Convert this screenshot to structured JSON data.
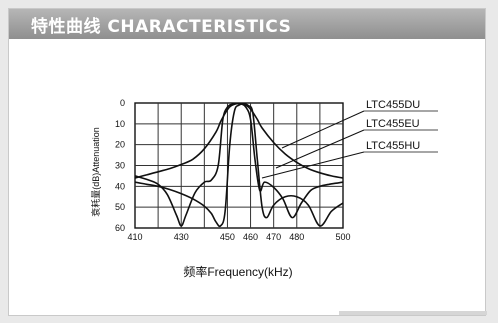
{
  "header": {
    "title": "特性曲线 CHARACTERISTICS"
  },
  "colors": {
    "header_bg": "#a3a3a3",
    "curve": "#111111",
    "grid": "#333333"
  },
  "chart_data": {
    "type": "line",
    "title": "",
    "xlabel": "频率Frequency(kHz)",
    "ylabel": "衰耗量(dB)Attenuation",
    "xlim": [
      410,
      500
    ],
    "ylim": [
      0,
      60
    ],
    "y_inverted": true,
    "grid": true,
    "xticks": [
      "410",
      "430",
      "450",
      "460",
      "470",
      "480",
      "500"
    ],
    "yticks": [
      "0",
      "10",
      "20",
      "30",
      "40",
      "50",
      "60"
    ],
    "legend_placement": "right, with leader lines",
    "series": [
      {
        "name": "LTC455DU",
        "x": [
          410,
          415,
          420,
          425,
          430,
          435,
          440,
          445,
          447,
          449,
          451,
          453,
          455,
          457,
          459,
          461,
          463,
          465,
          470,
          475,
          480,
          485,
          490,
          495,
          500
        ],
        "y": [
          36,
          34.5,
          33,
          31.5,
          29.5,
          27,
          22,
          14,
          9,
          5,
          1.8,
          0.6,
          0.2,
          0.5,
          1.8,
          4.5,
          8,
          12,
          19,
          24.5,
          28.5,
          31.5,
          33.5,
          35,
          36
        ]
      },
      {
        "name": "LTC455EU",
        "x": [
          410,
          416,
          420,
          424,
          428,
          430,
          432,
          436,
          440,
          443,
          446,
          448,
          450,
          452,
          454,
          456,
          458,
          460,
          462,
          464,
          466,
          470,
          474,
          478,
          482,
          486,
          490,
          494,
          497,
          500
        ],
        "y": [
          35,
          37,
          39,
          44,
          54,
          59,
          54,
          43,
          38,
          37,
          30,
          8,
          2,
          0.6,
          0.3,
          0.5,
          2,
          8,
          28,
          42,
          38,
          40.5,
          46,
          55,
          48,
          42,
          40,
          39,
          38.5,
          38
        ]
      },
      {
        "name": "LTC455HU",
        "x": [
          410,
          415,
          420,
          425,
          430,
          435,
          440,
          443,
          445,
          447,
          449,
          451,
          453,
          455,
          457,
          459,
          461,
          463,
          465,
          467,
          470,
          475,
          480,
          485,
          490,
          495,
          500
        ],
        "y": [
          38,
          39,
          40,
          41.5,
          43.5,
          46,
          49.5,
          53,
          57,
          59,
          52,
          20,
          4,
          1,
          0.5,
          1.2,
          5,
          28,
          50,
          55,
          49,
          45,
          45,
          49,
          59,
          52,
          48
        ]
      }
    ]
  }
}
